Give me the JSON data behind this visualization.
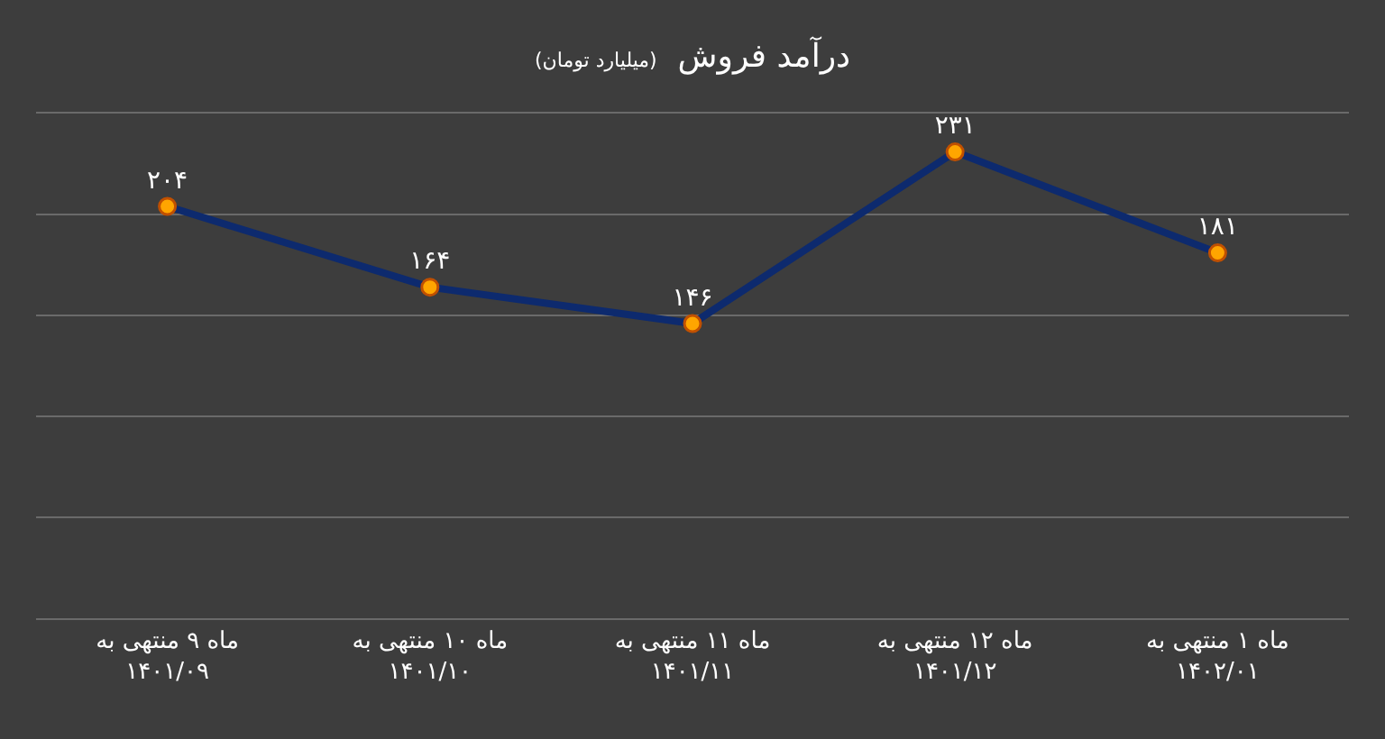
{
  "chart_data": {
    "type": "line",
    "title": "درآمد فروش",
    "subtitle": "(میلیارد تومان)",
    "categories": [
      "ماه ۹ منتهی به\n۱۴۰۱/۰۹",
      "ماه ۱۰ منتهی به\n۱۴۰۱/۱۰",
      "ماه ۱۱ منتهی به\n۱۴۰۱/۱۱",
      "ماه ۱۲ منتهی به\n۱۴۰۱/۱۲",
      "ماه ۱ منتهی به\n۱۴۰۲/۰۱"
    ],
    "series": [
      {
        "color": "#0d2a6e",
        "values": [
          204,
          164,
          146,
          231,
          181
        ],
        "value_labels": [
          "۲۰۴",
          "۱۶۴",
          "۱۴۶",
          "۲۳۱",
          "۱۸۱"
        ]
      }
    ],
    "ylim": [
      0,
      250
    ],
    "yticks": [
      {
        "value": 0,
        "label": null
      },
      {
        "value": 50,
        "label": null
      },
      {
        "value": 100,
        "label": null
      },
      {
        "value": 150,
        "label": null
      },
      {
        "value": 200,
        "label": null
      },
      {
        "value": 250,
        "label": null
      }
    ],
    "grid": "y",
    "tick_labels": "x",
    "marker": "circle",
    "line_style": "solid"
  }
}
